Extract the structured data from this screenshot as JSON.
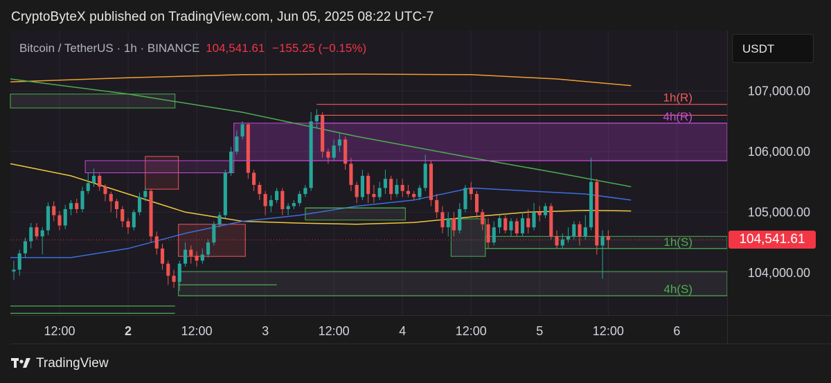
{
  "publisher_line": "CryptoByteX published on TradingView.com, Jun 05, 2025 08:22 UTC-7",
  "symbol": {
    "name": "Bitcoin / TetherUS · 1h · BINANCE",
    "price": "104,541.61",
    "change": "−155.25 (−0.15%)"
  },
  "currency": "USDT",
  "last_price_label": "104,541.61",
  "footer": {
    "brand": "TradingView",
    "logo_icon": "tradingview-logo-icon"
  },
  "colors": {
    "background": "#1a1a1a",
    "plot_background": "#1d1a22",
    "up": "#26a69a",
    "down": "#ef5350",
    "resistance_1h": "#f05a5a",
    "resistance_4h": "#c54bd8",
    "support": "#4caf50",
    "ma_yellow": "#f0c93a",
    "ma_orange": "#f0a030",
    "ma_green": "#4caf50",
    "ma_blue": "#3b6fe0"
  },
  "chart_data": {
    "type": "candlestick",
    "interval": "1h",
    "ylim": [
      103300,
      108000
    ],
    "y_ticks": [
      {
        "value": 107000,
        "label": "107,000.00"
      },
      {
        "value": 106000,
        "label": "106,000.00"
      },
      {
        "value": 105000,
        "label": "105,000.00"
      },
      {
        "value": 104000,
        "label": "104,000.00"
      }
    ],
    "x_ticks": [
      {
        "index": 8,
        "label": "12:00",
        "bold": false
      },
      {
        "index": 20,
        "label": "2",
        "bold": true
      },
      {
        "index": 32,
        "label": "12:00",
        "bold": false
      },
      {
        "index": 44,
        "label": "3",
        "bold": false
      },
      {
        "index": 56,
        "label": "12:00",
        "bold": false
      },
      {
        "index": 68,
        "label": "4",
        "bold": false
      },
      {
        "index": 80,
        "label": "12:00",
        "bold": false
      },
      {
        "index": 92,
        "label": "5",
        "bold": false
      },
      {
        "index": 104,
        "label": "12:00",
        "bold": false
      },
      {
        "index": 116,
        "label": "6",
        "bold": false
      }
    ],
    "x_range": [
      -0.6,
      124.8
    ],
    "candles": [
      [
        104020,
        104050,
        104200,
        103880
      ],
      [
        104050,
        104320,
        104380,
        103950
      ],
      [
        104320,
        104520,
        104580,
        104250
      ],
      [
        104520,
        104750,
        104820,
        104400
      ],
      [
        104750,
        104600,
        104820,
        104550
      ],
      [
        104600,
        104700,
        104750,
        104300
      ],
      [
        104700,
        105100,
        105160,
        104620
      ],
      [
        105100,
        104950,
        105180,
        104850
      ],
      [
        104950,
        104780,
        105020,
        104700
      ],
      [
        104780,
        105050,
        105120,
        104720
      ],
      [
        105050,
        105150,
        105200,
        104950
      ],
      [
        105150,
        105050,
        105220,
        104980
      ],
      [
        105050,
        105350,
        105420,
        105000
      ],
      [
        105350,
        105480,
        105650,
        105300
      ],
      [
        105480,
        105600,
        105720,
        105420
      ],
      [
        105600,
        105420,
        105640,
        105350
      ],
      [
        105420,
        105300,
        105460,
        105180
      ],
      [
        105300,
        105180,
        105340,
        105000
      ],
      [
        105180,
        105050,
        105220,
        104900
      ],
      [
        105050,
        104850,
        105100,
        104750
      ],
      [
        104850,
        104750,
        104900,
        104640
      ],
      [
        104750,
        105000,
        105040,
        104700
      ],
      [
        105000,
        105250,
        105320,
        104950
      ],
      [
        105250,
        105350,
        105420,
        105180
      ],
      [
        105350,
        104600,
        105380,
        104500
      ],
      [
        104600,
        104400,
        104680,
        104300
      ],
      [
        104400,
        104150,
        104480,
        104050
      ],
      [
        104150,
        103950,
        104200,
        103800
      ],
      [
        103950,
        103850,
        104050,
        103750
      ],
      [
        103850,
        104150,
        104200,
        103700
      ],
      [
        104150,
        104380,
        104500,
        104100
      ],
      [
        104380,
        104280,
        104450,
        104150
      ],
      [
        104280,
        104200,
        104350,
        104100
      ],
      [
        104200,
        104300,
        104400,
        104150
      ],
      [
        104300,
        104500,
        104550,
        104250
      ],
      [
        104500,
        104800,
        104850,
        104450
      ],
      [
        104800,
        104950,
        105000,
        104750
      ],
      [
        104950,
        105650,
        105700,
        104900
      ],
      [
        105650,
        106000,
        106080,
        105600
      ],
      [
        106000,
        106250,
        106350,
        105950
      ],
      [
        106250,
        106450,
        106500,
        106200
      ],
      [
        106450,
        105650,
        106480,
        105550
      ],
      [
        105650,
        105450,
        105700,
        105350
      ],
      [
        105450,
        105300,
        105500,
        105200
      ],
      [
        105300,
        105100,
        105350,
        104950
      ],
      [
        105100,
        105200,
        105280,
        105000
      ],
      [
        105200,
        105350,
        105400,
        105150
      ],
      [
        105350,
        105050,
        105400,
        104950
      ],
      [
        105050,
        105100,
        105150,
        104950
      ],
      [
        105100,
        105150,
        105200,
        105050
      ],
      [
        105150,
        105300,
        105350,
        105100
      ],
      [
        105300,
        105400,
        105450,
        105250
      ],
      [
        105400,
        106500,
        106650,
        105350
      ],
      [
        106500,
        106600,
        106700,
        106400
      ],
      [
        106600,
        106000,
        106650,
        105900
      ],
      [
        106000,
        105900,
        106050,
        105800
      ],
      [
        105900,
        106100,
        106200,
        105850
      ],
      [
        106100,
        106200,
        106300,
        106000
      ],
      [
        106200,
        105800,
        106250,
        105700
      ],
      [
        105800,
        105450,
        105900,
        105350
      ],
      [
        105450,
        105250,
        105500,
        105150
      ],
      [
        105250,
        105600,
        105700,
        105200
      ],
      [
        105600,
        105300,
        105650,
        105150
      ],
      [
        105300,
        105250,
        105450,
        105150
      ],
      [
        105250,
        105400,
        105500,
        105200
      ],
      [
        105400,
        105550,
        105700,
        105300
      ],
      [
        105550,
        105300,
        105600,
        105200
      ],
      [
        105300,
        105450,
        105550,
        105250
      ],
      [
        105450,
        105350,
        105550,
        105250
      ],
      [
        105350,
        105300,
        105450,
        105250
      ],
      [
        105300,
        105250,
        105350,
        105200
      ],
      [
        105250,
        105400,
        105450,
        105200
      ],
      [
        105400,
        105800,
        105950,
        105350
      ],
      [
        105800,
        105200,
        105850,
        105100
      ],
      [
        105200,
        105000,
        105300,
        104900
      ],
      [
        105000,
        104750,
        105100,
        104650
      ],
      [
        104750,
        104900,
        105000,
        104600
      ],
      [
        104900,
        104700,
        105000,
        104600
      ],
      [
        104700,
        105050,
        105150,
        104650
      ],
      [
        105050,
        105400,
        105450,
        105000
      ],
      [
        105400,
        105300,
        105500,
        105200
      ],
      [
        105300,
        105000,
        105350,
        104900
      ],
      [
        105000,
        104800,
        105050,
        104700
      ],
      [
        104800,
        104500,
        104900,
        104400
      ],
      [
        104500,
        104750,
        104850,
        104450
      ],
      [
        104750,
        104900,
        104950,
        104650
      ],
      [
        104900,
        104700,
        104950,
        104650
      ],
      [
        104700,
        104850,
        104900,
        104600
      ],
      [
        104850,
        104650,
        104900,
        104600
      ],
      [
        104650,
        104900,
        105000,
        104600
      ],
      [
        104900,
        104750,
        105050,
        104650
      ],
      [
        104750,
        105000,
        105150,
        104700
      ],
      [
        105000,
        104950,
        105100,
        104850
      ],
      [
        104950,
        105100,
        105150,
        104900
      ],
      [
        105100,
        104600,
        105150,
        104550
      ],
      [
        104600,
        104450,
        104700,
        104400
      ],
      [
        104450,
        104550,
        104650,
        104400
      ],
      [
        104550,
        104600,
        104750,
        104500
      ],
      [
        104600,
        104800,
        104850,
        104550
      ],
      [
        104800,
        104600,
        104850,
        104450
      ],
      [
        104600,
        104750,
        104950,
        104550
      ],
      [
        104750,
        105500,
        105900,
        104700
      ],
      [
        105500,
        104450,
        105550,
        104300
      ],
      [
        104450,
        104600,
        104700,
        103900
      ],
      [
        104600,
        104541.61,
        104700,
        104400
      ]
    ],
    "moving_averages": [
      {
        "color": "#f0c93a",
        "points": [
          [
            -0.6,
            105800
          ],
          [
            10,
            105600
          ],
          [
            20,
            105300
          ],
          [
            30,
            105000
          ],
          [
            40,
            104850
          ],
          [
            50,
            104820
          ],
          [
            60,
            104800
          ],
          [
            70,
            104830
          ],
          [
            80,
            104920
          ],
          [
            90,
            105000
          ],
          [
            100,
            105030
          ],
          [
            108,
            105020
          ]
        ]
      },
      {
        "color": "#f0a030",
        "points": [
          [
            -0.6,
            107150
          ],
          [
            20,
            107220
          ],
          [
            40,
            107270
          ],
          [
            60,
            107280
          ],
          [
            80,
            107270
          ],
          [
            95,
            107200
          ],
          [
            108,
            107090
          ]
        ]
      },
      {
        "color": "#4caf50",
        "points": [
          [
            -0.6,
            107200
          ],
          [
            20,
            106950
          ],
          [
            40,
            106650
          ],
          [
            60,
            106250
          ],
          [
            80,
            105900
          ],
          [
            95,
            105650
          ],
          [
            108,
            105420
          ]
        ]
      },
      {
        "color": "#3b6fe0",
        "points": [
          [
            -0.6,
            104250
          ],
          [
            10,
            104250
          ],
          [
            20,
            104400
          ],
          [
            30,
            104650
          ],
          [
            40,
            104850
          ],
          [
            50,
            104950
          ],
          [
            60,
            105100
          ],
          [
            70,
            105200
          ],
          [
            80,
            105400
          ],
          [
            90,
            105350
          ],
          [
            100,
            105300
          ],
          [
            108,
            105200
          ]
        ]
      }
    ],
    "zones": [
      {
        "x0": -0.6,
        "x1": 28.2,
        "y0": 106720,
        "y1": 106950,
        "stroke": "#4caf50",
        "fill": "rgba(150,150,150,0.12)"
      },
      {
        "x0": 38.5,
        "x1": 124.8,
        "y0": 105850,
        "y1": 106470,
        "stroke": "#c54bd8",
        "fill": "rgba(168,60,190,0.28)"
      },
      {
        "x0": 23,
        "x1": 28.8,
        "y0": 105380,
        "y1": 105920,
        "stroke": "#f05a5a",
        "fill": "rgba(240,90,90,0.12)"
      },
      {
        "x0": 12.5,
        "x1": 38.5,
        "y0": 105650,
        "y1": 105850,
        "stroke": "#c54bd8",
        "fill": "rgba(168,60,190,0.15)"
      },
      {
        "x0": 28.8,
        "x1": 40.5,
        "y0": 104270,
        "y1": 104800,
        "stroke": "#f05a5a",
        "fill": "rgba(240,90,90,0.15)"
      },
      {
        "x0": 76.5,
        "x1": 82.5,
        "y0": 104270,
        "y1": 104890,
        "stroke": "#4caf50",
        "fill": "rgba(150,150,150,0.14)"
      },
      {
        "x0": 28.8,
        "x1": 124.8,
        "y0": 103620,
        "y1": 104020,
        "stroke": "#4caf50",
        "fill": "rgba(150,150,150,0.10)"
      },
      {
        "x0": 51,
        "x1": 68.5,
        "y0": 104870,
        "y1": 105070,
        "stroke": "#4caf50",
        "fill": "rgba(150,150,150,0.10)"
      },
      {
        "x0": 82.5,
        "x1": 124.8,
        "y0": 104400,
        "y1": 104600,
        "stroke": "#4caf50",
        "fill": "rgba(150,150,150,0.06)"
      }
    ],
    "levels": [
      {
        "x0": 53,
        "x1": 124.8,
        "y": 106780,
        "color": "#f05a5a",
        "label": "1h(R)"
      },
      {
        "x0": 53,
        "x1": 124.8,
        "y": 106600,
        "color": "#f05a5a",
        "label": ""
      },
      {
        "x0": 53,
        "x1": 124.8,
        "y": 106470,
        "color": "#c54bd8",
        "label": "4h(R)"
      },
      {
        "x0": 38.5,
        "x1": 124.8,
        "y": 105850,
        "color": "#c54bd8",
        "label": ""
      },
      {
        "x0": 82.5,
        "x1": 124.8,
        "y": 104400,
        "color": "#4caf50",
        "label": "1h(S)"
      },
      {
        "x0": 28.8,
        "x1": 124.8,
        "y": 103620,
        "color": "#4caf50",
        "label": "4h(S)"
      },
      {
        "x0": -0.6,
        "x1": 28.2,
        "y": 103450,
        "color": "#4caf50",
        "label": ""
      },
      {
        "x0": -0.6,
        "x1": 28.2,
        "y": 103330,
        "color": "#4caf50",
        "label": ""
      },
      {
        "x0": 28.8,
        "x1": 46,
        "y": 103800,
        "color": "#4caf50",
        "label": ""
      },
      {
        "x0": 51,
        "x1": 68.5,
        "y": 105070,
        "color": "#4caf50",
        "label": ""
      }
    ],
    "last_price": 104541.61
  }
}
